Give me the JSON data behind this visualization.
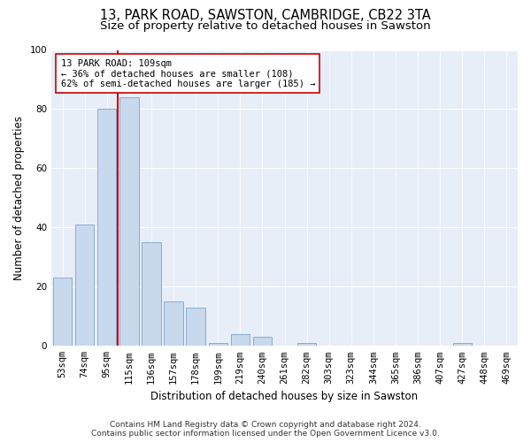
{
  "title": "13, PARK ROAD, SAWSTON, CAMBRIDGE, CB22 3TA",
  "subtitle": "Size of property relative to detached houses in Sawston",
  "xlabel": "Distribution of detached houses by size in Sawston",
  "ylabel": "Number of detached properties",
  "categories": [
    "53sqm",
    "74sqm",
    "95sqm",
    "115sqm",
    "136sqm",
    "157sqm",
    "178sqm",
    "199sqm",
    "219sqm",
    "240sqm",
    "261sqm",
    "282sqm",
    "303sqm",
    "323sqm",
    "344sqm",
    "365sqm",
    "386sqm",
    "407sqm",
    "427sqm",
    "448sqm",
    "469sqm"
  ],
  "values": [
    23,
    41,
    80,
    84,
    35,
    15,
    13,
    1,
    4,
    3,
    0,
    1,
    0,
    0,
    0,
    0,
    0,
    0,
    1,
    0,
    0
  ],
  "bar_color": "#c8d9ee",
  "bar_edge_color": "#8aaad0",
  "vline_color": "#cc0000",
  "annotation_text": "13 PARK ROAD: 109sqm\n← 36% of detached houses are smaller (108)\n62% of semi-detached houses are larger (185) →",
  "annotation_box_color": "#ffffff",
  "annotation_box_edge": "#cc0000",
  "ylim": [
    0,
    100
  ],
  "yticks": [
    0,
    20,
    40,
    60,
    80,
    100
  ],
  "background_color": "#e8eef8",
  "footer_line1": "Contains HM Land Registry data © Crown copyright and database right 2024.",
  "footer_line2": "Contains public sector information licensed under the Open Government Licence v3.0.",
  "title_fontsize": 10.5,
  "subtitle_fontsize": 9.5,
  "axis_label_fontsize": 8.5,
  "tick_fontsize": 7.5,
  "annotation_fontsize": 7.5,
  "footer_fontsize": 6.5
}
